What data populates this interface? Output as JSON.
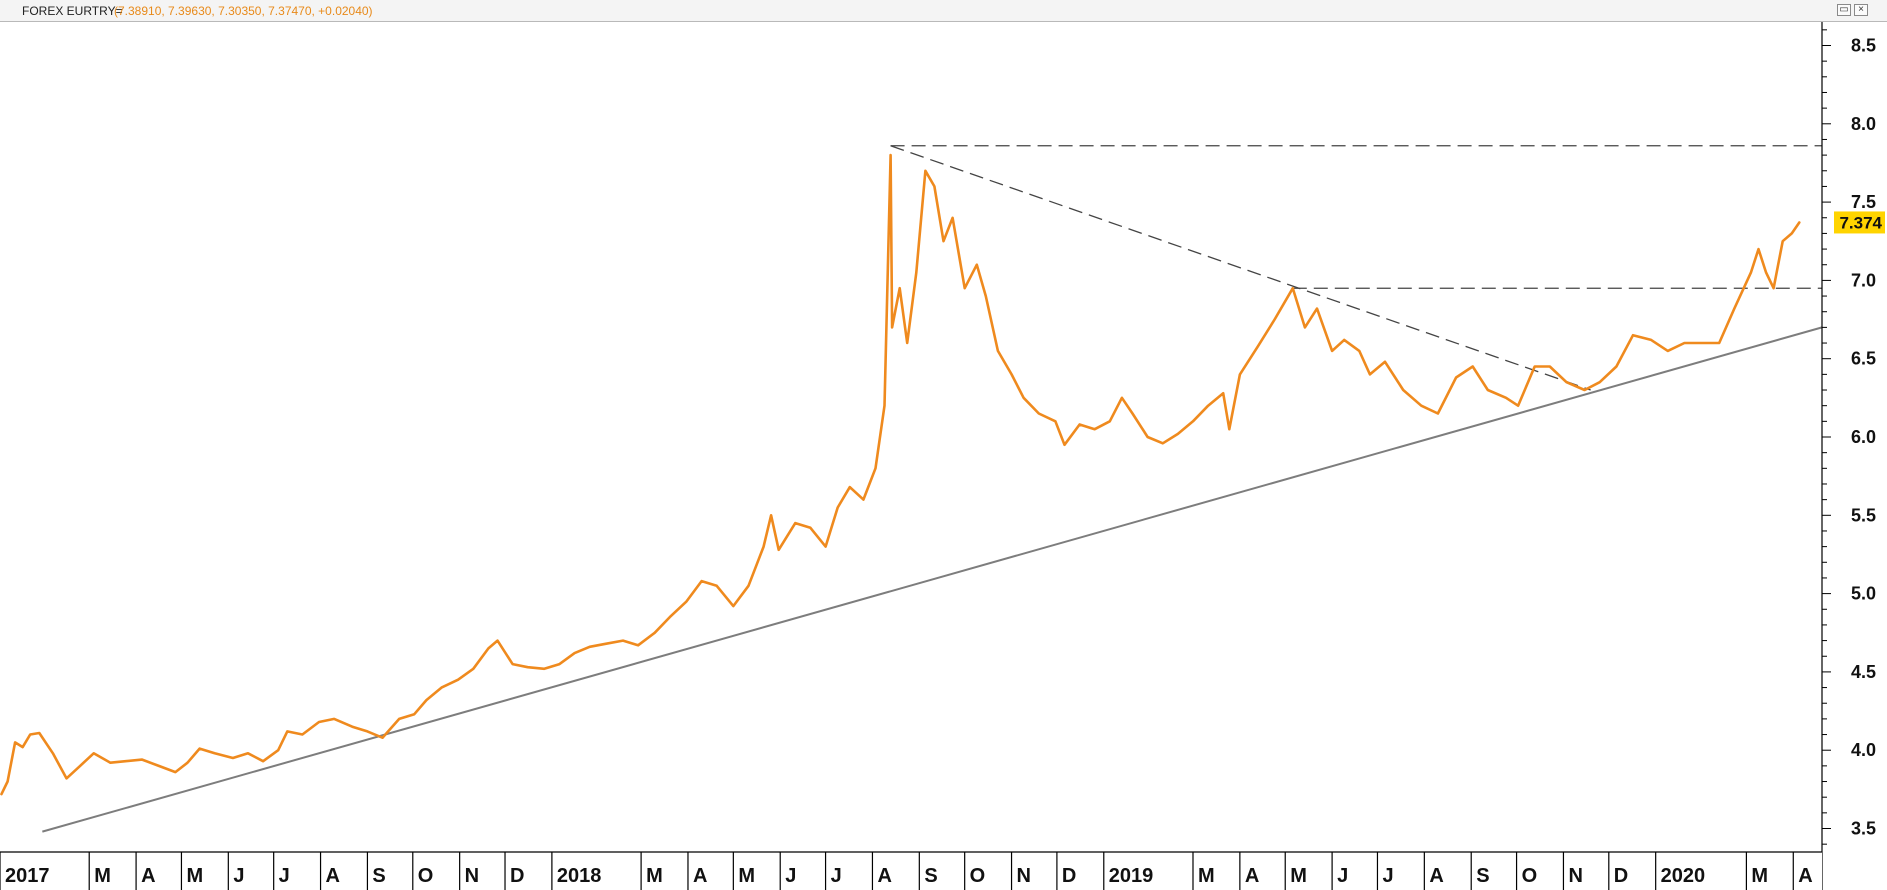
{
  "window": {
    "symbol": "FOREX EURTRY=",
    "ohlc": "(7.38910, 7.39630, 7.30350, 7.37470, +0.02040)",
    "restore_icon": "restore-icon",
    "close_icon": "close-icon"
  },
  "colors": {
    "price_line": "#ef8a1e",
    "trendline": "#7d7d7d",
    "dashed": "#444444",
    "last_price_bg": "#ffd400",
    "axis": "#000000"
  },
  "chart_data": {
    "type": "line",
    "ylim": [
      3.35,
      8.65
    ],
    "y_ticks": [
      3.5,
      4.0,
      4.5,
      5.0,
      5.5,
      6.0,
      6.5,
      7.0,
      7.5,
      8.0,
      8.5
    ],
    "y_tick_labels": [
      "3.5",
      "4.0",
      "4.5",
      "5.0",
      "5.5",
      "6.0",
      "6.5",
      "7.0",
      "7.5",
      "8.0",
      "8.5"
    ],
    "xlim": [
      "2017-01-01",
      "2020-04-20"
    ],
    "x_ticks": [
      {
        "date": "2017-01-01",
        "label": "2017"
      },
      {
        "date": "2017-03-01",
        "label": "M"
      },
      {
        "date": "2017-04-01",
        "label": "A"
      },
      {
        "date": "2017-05-01",
        "label": "M"
      },
      {
        "date": "2017-06-01",
        "label": "J"
      },
      {
        "date": "2017-07-01",
        "label": "J"
      },
      {
        "date": "2017-08-01",
        "label": "A"
      },
      {
        "date": "2017-09-01",
        "label": "S"
      },
      {
        "date": "2017-10-01",
        "label": "O"
      },
      {
        "date": "2017-11-01",
        "label": "N"
      },
      {
        "date": "2017-12-01",
        "label": "D"
      },
      {
        "date": "2018-01-01",
        "label": "2018"
      },
      {
        "date": "2018-03-01",
        "label": "M"
      },
      {
        "date": "2018-04-01",
        "label": "A"
      },
      {
        "date": "2018-05-01",
        "label": "M"
      },
      {
        "date": "2018-06-01",
        "label": "J"
      },
      {
        "date": "2018-07-01",
        "label": "J"
      },
      {
        "date": "2018-08-01",
        "label": "A"
      },
      {
        "date": "2018-09-01",
        "label": "S"
      },
      {
        "date": "2018-10-01",
        "label": "O"
      },
      {
        "date": "2018-11-01",
        "label": "N"
      },
      {
        "date": "2018-12-01",
        "label": "D"
      },
      {
        "date": "2019-01-01",
        "label": "2019"
      },
      {
        "date": "2019-03-01",
        "label": "M"
      },
      {
        "date": "2019-04-01",
        "label": "A"
      },
      {
        "date": "2019-05-01",
        "label": "M"
      },
      {
        "date": "2019-06-01",
        "label": "J"
      },
      {
        "date": "2019-07-01",
        "label": "J"
      },
      {
        "date": "2019-08-01",
        "label": "A"
      },
      {
        "date": "2019-09-01",
        "label": "S"
      },
      {
        "date": "2019-10-01",
        "label": "O"
      },
      {
        "date": "2019-11-01",
        "label": "N"
      },
      {
        "date": "2019-12-01",
        "label": "D"
      },
      {
        "date": "2020-01-01",
        "label": "2020"
      },
      {
        "date": "2020-03-01",
        "label": "M"
      },
      {
        "date": "2020-04-01",
        "label": "A"
      }
    ],
    "grid": false,
    "last_price_label": "7.374",
    "series": [
      {
        "points": [
          [
            "2017-01-02",
            3.72
          ],
          [
            "2017-01-06",
            3.8
          ],
          [
            "2017-01-11",
            4.05
          ],
          [
            "2017-01-16",
            4.02
          ],
          [
            "2017-01-21",
            4.1
          ],
          [
            "2017-01-27",
            4.11
          ],
          [
            "2017-02-05",
            3.98
          ],
          [
            "2017-02-14",
            3.82
          ],
          [
            "2017-02-23",
            3.9
          ],
          [
            "2017-03-04",
            3.98
          ],
          [
            "2017-03-15",
            3.92
          ],
          [
            "2017-03-25",
            3.93
          ],
          [
            "2017-04-05",
            3.94
          ],
          [
            "2017-04-16",
            3.9
          ],
          [
            "2017-04-27",
            3.86
          ],
          [
            "2017-05-05",
            3.92
          ],
          [
            "2017-05-13",
            4.01
          ],
          [
            "2017-05-23",
            3.98
          ],
          [
            "2017-06-04",
            3.95
          ],
          [
            "2017-06-14",
            3.98
          ],
          [
            "2017-06-24",
            3.93
          ],
          [
            "2017-07-04",
            4.0
          ],
          [
            "2017-07-10",
            4.12
          ],
          [
            "2017-07-20",
            4.1
          ],
          [
            "2017-07-31",
            4.18
          ],
          [
            "2017-08-10",
            4.2
          ],
          [
            "2017-08-22",
            4.15
          ],
          [
            "2017-09-01",
            4.12
          ],
          [
            "2017-09-11",
            4.08
          ],
          [
            "2017-09-22",
            4.2
          ],
          [
            "2017-10-02",
            4.23
          ],
          [
            "2017-10-10",
            4.32
          ],
          [
            "2017-10-20",
            4.4
          ],
          [
            "2017-10-31",
            4.45
          ],
          [
            "2017-11-10",
            4.52
          ],
          [
            "2017-11-20",
            4.65
          ],
          [
            "2017-11-26",
            4.7
          ],
          [
            "2017-12-06",
            4.55
          ],
          [
            "2017-12-16",
            4.53
          ],
          [
            "2017-12-27",
            4.52
          ],
          [
            "2018-01-06",
            4.55
          ],
          [
            "2018-01-16",
            4.62
          ],
          [
            "2018-01-26",
            4.66
          ],
          [
            "2018-02-06",
            4.68
          ],
          [
            "2018-02-17",
            4.7
          ],
          [
            "2018-02-27",
            4.67
          ],
          [
            "2018-03-10",
            4.75
          ],
          [
            "2018-03-20",
            4.85
          ],
          [
            "2018-03-31",
            4.95
          ],
          [
            "2018-04-10",
            5.08
          ],
          [
            "2018-04-20",
            5.05
          ],
          [
            "2018-05-01",
            4.92
          ],
          [
            "2018-05-11",
            5.05
          ],
          [
            "2018-05-21",
            5.3
          ],
          [
            "2018-05-26",
            5.5
          ],
          [
            "2018-05-31",
            5.28
          ],
          [
            "2018-06-11",
            5.45
          ],
          [
            "2018-06-21",
            5.42
          ],
          [
            "2018-07-01",
            5.3
          ],
          [
            "2018-07-09",
            5.55
          ],
          [
            "2018-07-17",
            5.68
          ],
          [
            "2018-07-26",
            5.6
          ],
          [
            "2018-08-03",
            5.8
          ],
          [
            "2018-08-09",
            6.2
          ],
          [
            "2018-08-13",
            7.8
          ],
          [
            "2018-08-14",
            6.7
          ],
          [
            "2018-08-19",
            6.95
          ],
          [
            "2018-08-24",
            6.6
          ],
          [
            "2018-08-30",
            7.05
          ],
          [
            "2018-09-05",
            7.7
          ],
          [
            "2018-09-11",
            7.6
          ],
          [
            "2018-09-17",
            7.25
          ],
          [
            "2018-09-23",
            7.4
          ],
          [
            "2018-10-01",
            6.95
          ],
          [
            "2018-10-09",
            7.1
          ],
          [
            "2018-10-15",
            6.9
          ],
          [
            "2018-10-23",
            6.55
          ],
          [
            "2018-11-01",
            6.4
          ],
          [
            "2018-11-09",
            6.25
          ],
          [
            "2018-11-19",
            6.15
          ],
          [
            "2018-11-30",
            6.1
          ],
          [
            "2018-12-06",
            5.95
          ],
          [
            "2018-12-16",
            6.08
          ],
          [
            "2018-12-26",
            6.05
          ],
          [
            "2019-01-05",
            6.1
          ],
          [
            "2019-01-13",
            6.25
          ],
          [
            "2019-01-20",
            6.15
          ],
          [
            "2019-01-30",
            6.0
          ],
          [
            "2019-02-09",
            5.96
          ],
          [
            "2019-02-19",
            6.02
          ],
          [
            "2019-03-01",
            6.1
          ],
          [
            "2019-03-11",
            6.2
          ],
          [
            "2019-03-21",
            6.28
          ],
          [
            "2019-03-25",
            6.05
          ],
          [
            "2019-04-01",
            6.4
          ],
          [
            "2019-04-13",
            6.58
          ],
          [
            "2019-04-24",
            6.75
          ],
          [
            "2019-05-06",
            6.95
          ],
          [
            "2019-05-14",
            6.7
          ],
          [
            "2019-05-22",
            6.82
          ],
          [
            "2019-06-01",
            6.55
          ],
          [
            "2019-06-09",
            6.62
          ],
          [
            "2019-06-19",
            6.55
          ],
          [
            "2019-06-26",
            6.4
          ],
          [
            "2019-07-06",
            6.48
          ],
          [
            "2019-07-18",
            6.3
          ],
          [
            "2019-07-30",
            6.2
          ],
          [
            "2019-08-10",
            6.15
          ],
          [
            "2019-08-22",
            6.38
          ],
          [
            "2019-09-02",
            6.45
          ],
          [
            "2019-09-12",
            6.3
          ],
          [
            "2019-09-24",
            6.25
          ],
          [
            "2019-10-02",
            6.2
          ],
          [
            "2019-10-13",
            6.45
          ],
          [
            "2019-10-23",
            6.45
          ],
          [
            "2019-11-03",
            6.35
          ],
          [
            "2019-11-15",
            6.3
          ],
          [
            "2019-11-25",
            6.35
          ],
          [
            "2019-12-06",
            6.45
          ],
          [
            "2019-12-17",
            6.65
          ],
          [
            "2019-12-29",
            6.62
          ],
          [
            "2020-01-09",
            6.55
          ],
          [
            "2020-01-20",
            6.6
          ],
          [
            "2020-02-01",
            6.6
          ],
          [
            "2020-02-12",
            6.6
          ],
          [
            "2020-02-22",
            6.82
          ],
          [
            "2020-03-04",
            7.05
          ],
          [
            "2020-03-09",
            7.2
          ],
          [
            "2020-03-14",
            7.05
          ],
          [
            "2020-03-19",
            6.95
          ],
          [
            "2020-03-25",
            7.25
          ],
          [
            "2020-03-31",
            7.3
          ],
          [
            "2020-04-05",
            7.37
          ]
        ]
      }
    ],
    "trendlines": [
      {
        "style": "solid",
        "start": [
          "2017-01-29",
          3.48
        ],
        "end": [
          "2020-04-20",
          6.7
        ]
      },
      {
        "style": "dashed",
        "start": [
          "2018-08-13",
          7.86
        ],
        "end": [
          "2019-11-19",
          6.3
        ]
      },
      {
        "style": "dashed",
        "start": [
          "2018-08-13",
          7.86
        ],
        "end": [
          "2020-04-20",
          7.86
        ]
      },
      {
        "style": "dashed",
        "start": [
          "2019-05-06",
          6.95
        ],
        "end": [
          "2020-04-20",
          6.95
        ]
      }
    ]
  }
}
